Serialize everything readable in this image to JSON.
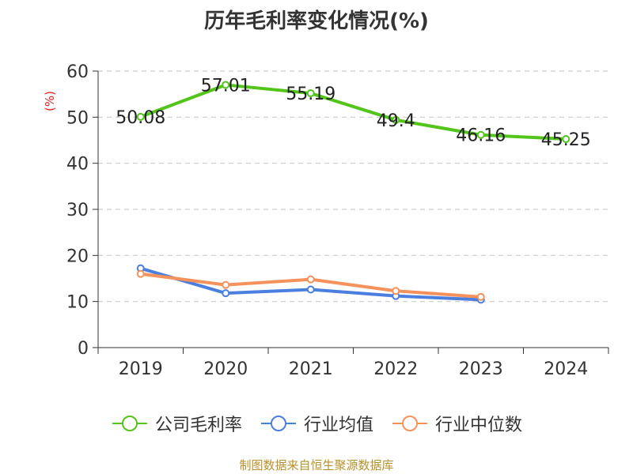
{
  "chart_data": {
    "type": "line",
    "title": "历年毛利率变化情况(%)",
    "ylabel": "(%)",
    "categories": [
      "2019",
      "2020",
      "2021",
      "2022",
      "2023",
      "2024"
    ],
    "ylim": [
      0,
      60
    ],
    "yticks": [
      0,
      10,
      20,
      30,
      40,
      50,
      60
    ],
    "grid": true,
    "legend_position": "bottom",
    "series": [
      {
        "name": "公司毛利率",
        "color": "#52c41a",
        "values": [
          50.08,
          57.01,
          55.19,
          49.4,
          46.16,
          45.25
        ],
        "labels": [
          "50.08",
          "57.01",
          "55.19",
          "49.4",
          "46.16",
          "45.25"
        ]
      },
      {
        "name": "行业均值",
        "color": "#4a7fe0",
        "values": [
          17.2,
          11.8,
          12.6,
          11.2,
          10.4,
          null
        ]
      },
      {
        "name": "行业中位数",
        "color": "#f5915a",
        "values": [
          16.0,
          13.6,
          14.8,
          12.3,
          11.0,
          null
        ]
      }
    ]
  },
  "source": "制图数据来自恒生聚源数据库"
}
